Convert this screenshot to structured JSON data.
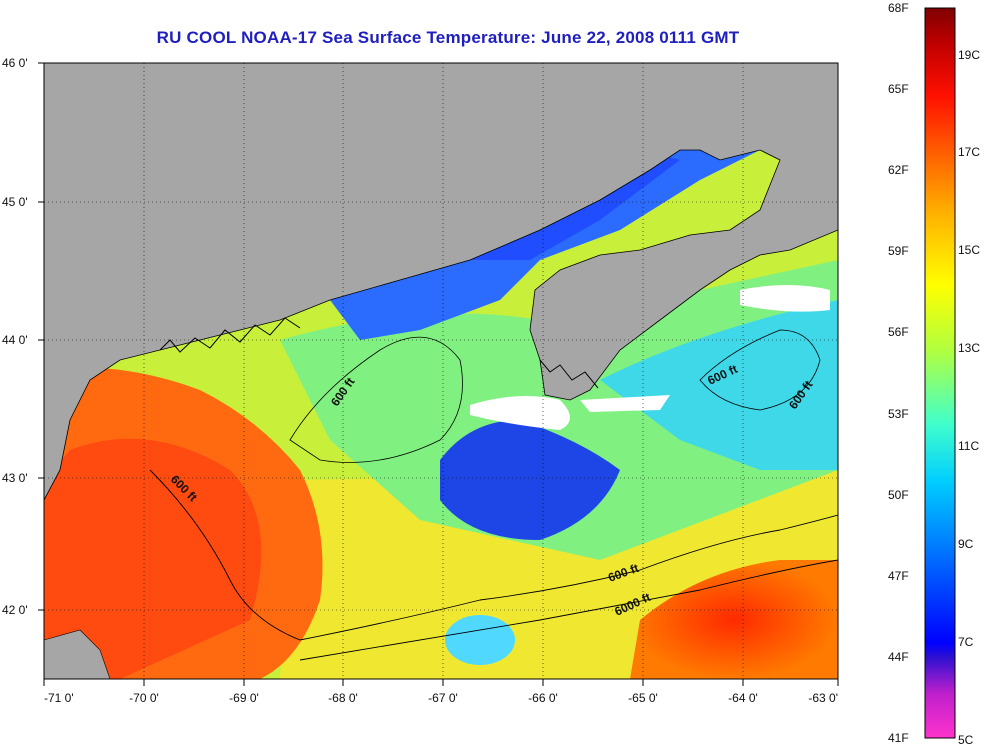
{
  "title": "RU COOL  NOAA-17  Sea Surface Temperature:  June 22, 2008 0111 GMT",
  "map": {
    "lon_labels": [
      "-71 0'",
      "-70 0'",
      "-69 0'",
      "-68 0'",
      "-67 0'",
      "-66 0'",
      "-65 0'",
      "-64 0'",
      "-63 0'"
    ],
    "lat_labels": [
      "46 0'",
      "45 0'",
      "44 0'",
      "43 0'",
      "42 0'"
    ],
    "contour_labels": [
      "600 ft",
      "600 ft",
      "600 ft",
      "600 ft",
      "600 ft",
      "6000 ft"
    ],
    "colors": {
      "land": "#a6a6a6",
      "cloud": "#ffffff",
      "coast": "#000000"
    }
  },
  "colorbar": {
    "fahrenheit": [
      "68F",
      "65F",
      "62F",
      "59F",
      "56F",
      "53F",
      "50F",
      "47F",
      "44F",
      "41F"
    ],
    "celsius": [
      "19C",
      "17C",
      "15C",
      "13C",
      "11C",
      "9C",
      "7C",
      "5C"
    ],
    "colors": [
      "#ff33cc",
      "#b21acc",
      "#6a1fc8",
      "#0000ff",
      "#0080ff",
      "#00dcff",
      "#59ffa6",
      "#ccff33",
      "#ffd400",
      "#ff7f00",
      "#ff2000",
      "#ff0000",
      "#a80000",
      "#800000"
    ]
  }
}
